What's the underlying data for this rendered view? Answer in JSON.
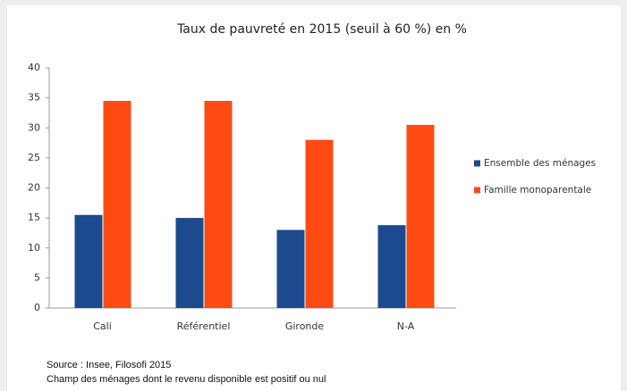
{
  "chart_data": {
    "type": "bar",
    "title": "Taux de pauvreté en 2015 (seuil à 60 %) en %",
    "categories": [
      "Cali",
      "Référentiel",
      "Gironde",
      "N-A"
    ],
    "series": [
      {
        "name": "Ensemble des ménages",
        "color": "#1c4a8f",
        "values": [
          15.5,
          15,
          13,
          13.8
        ]
      },
      {
        "name": "Famille monoparentale",
        "color": "#ff4b12",
        "values": [
          34.5,
          34.5,
          28,
          30.5
        ]
      }
    ],
    "ylim": [
      0,
      40
    ],
    "yticks": [
      0,
      5,
      10,
      15,
      20,
      25,
      30,
      35,
      40
    ],
    "grid": false,
    "legend": "right",
    "notes": [
      "Source : Insee, Filosofi 2015",
      "Champ des ménages dont le revenu disponible est positif ou nul"
    ]
  }
}
